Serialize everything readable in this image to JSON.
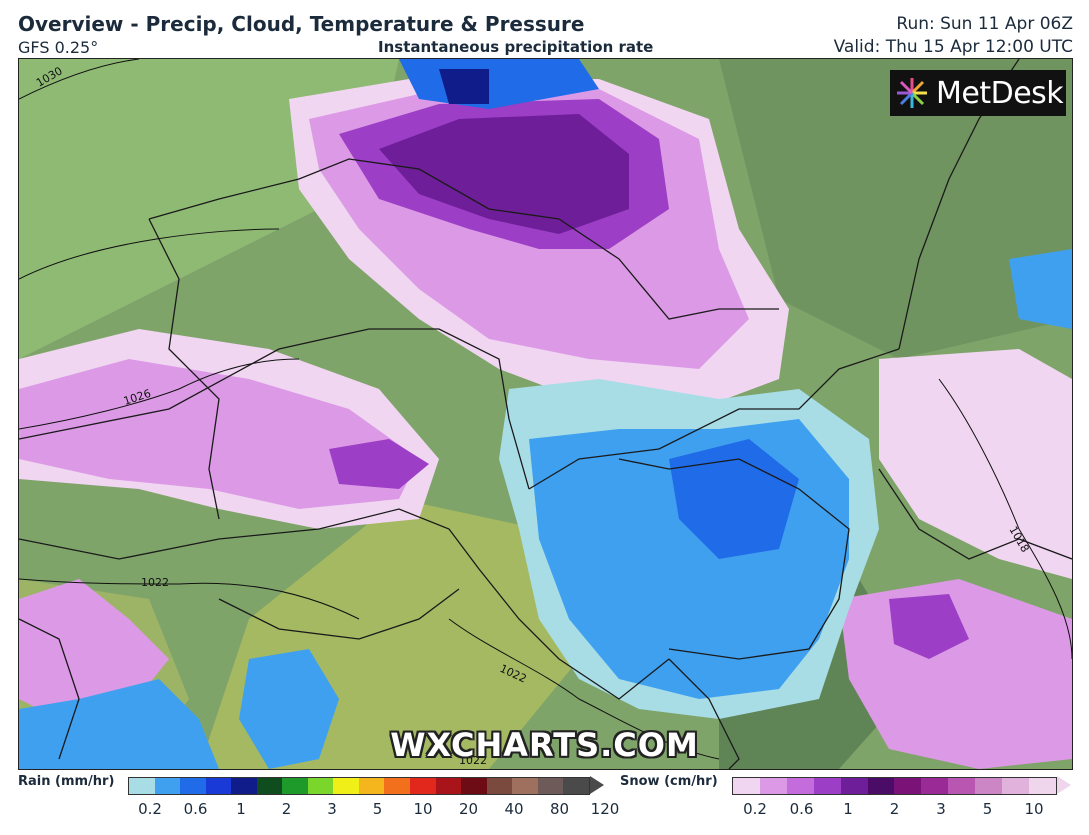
{
  "header": {
    "title": "Overview - Precip, Cloud, Temperature & Pressure",
    "model": "GFS 0.25°",
    "subtitle": "Instantaneous precipitation rate",
    "run": "Run: Sun 11 Apr 06Z",
    "valid": "Valid: Thu 15 Apr 12:00 UTC"
  },
  "logo": {
    "text": "MetDesk"
  },
  "watermark": "WXCHARTS.COM",
  "isobars": [
    "1030",
    "1026",
    "1022",
    "1022",
    "1022",
    "1018"
  ],
  "legend": {
    "rain": {
      "label": "Rain (mm/hr)",
      "colors": [
        "#a8dde6",
        "#3fa0f0",
        "#1f6be8",
        "#1a3ad8",
        "#101c8a",
        "#0f4d1e",
        "#1d9a2a",
        "#7ad62a",
        "#f0f018",
        "#f5b51c",
        "#f2701c",
        "#e2271c",
        "#a8141a",
        "#6e0c16",
        "#7b4a3e",
        "#a0705e",
        "#6e5a58",
        "#4a4a4a"
      ],
      "ticks": [
        "0.2",
        "0.6",
        "1",
        "2",
        "3",
        "5",
        "10",
        "20",
        "40",
        "80",
        "120"
      ]
    },
    "snow": {
      "label": "Snow (cm/hr)",
      "colors": [
        "#f1d6f2",
        "#dc9ae6",
        "#c46cdc",
        "#9c3ec6",
        "#6e1e98",
        "#4a0c66",
        "#7a1278",
        "#9a2a96",
        "#b856b2",
        "#cc86c6",
        "#e0b2dc",
        "#efd6ec"
      ],
      "ticks": [
        "0.2",
        "0.6",
        "1",
        "2",
        "3",
        "5",
        "10"
      ]
    }
  }
}
